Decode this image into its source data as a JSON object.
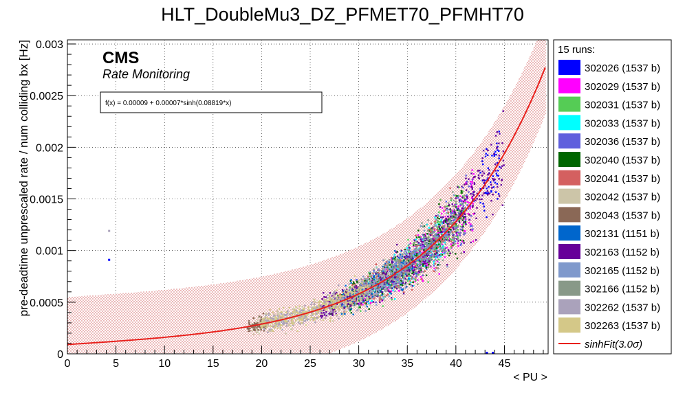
{
  "chart_data": {
    "type": "scatter",
    "title": "HLT_DoubleMu3_DZ_PFMET70_PFMHT70",
    "xlabel": "< PU >",
    "ylabel": "pre-deadtime unprescaled rate / num colliding bx [Hz]",
    "xlim": [
      0,
      49.5
    ],
    "ylim": [
      0,
      0.00304
    ],
    "xticks": [
      "0",
      "5",
      "10",
      "15",
      "20",
      "25",
      "30",
      "35",
      "40",
      "45"
    ],
    "yticks": [
      "0",
      "0.0005",
      "0.001",
      "0.0015",
      "0.002",
      "0.0025",
      "0.003"
    ],
    "grid": true,
    "legend_position": "right",
    "brand": "CMS",
    "subtitle": "Rate Monitoring",
    "fit_label": "f(x) = 0.00009 + 0.00007*sinh(0.08819*x)",
    "fit": {
      "a": 9e-05,
      "b": 7e-05,
      "c": 0.08819,
      "band_sigma": 3.0,
      "band_halfwidth": 0.00046,
      "x_range": [
        0,
        49.3
      ]
    },
    "legend": {
      "header": "15 runs:",
      "fit_entry": "sinhFit(3.0σ)",
      "fit_color": "#e8201c"
    },
    "series": [
      {
        "name": "302026 (1537 b)",
        "color": "#0000ff",
        "pu_range": [
          42.5,
          44.5
        ],
        "points": [
          [
            4.3,
            0.00091
          ],
          [
            43.2,
            1e-05
          ],
          [
            43.8,
            1e-05
          ]
        ]
      },
      {
        "name": "302029 (1537 b)",
        "color": "#ff00ff",
        "pu_range": [
          30,
          42
        ]
      },
      {
        "name": "302031 (1537 b)",
        "color": "#55cc55",
        "pu_range": [
          29,
          41
        ]
      },
      {
        "name": "302033 (1537 b)",
        "color": "#00ffff",
        "pu_range": [
          31,
          39
        ]
      },
      {
        "name": "302036 (1537 b)",
        "color": "#5f5fdd",
        "pu_range": [
          29,
          42
        ]
      },
      {
        "name": "302040 (1537 b)",
        "color": "#006600",
        "pu_range": [
          27,
          41
        ]
      },
      {
        "name": "302041 (1537 b)",
        "color": "#d46060",
        "pu_range": [
          28,
          40
        ]
      },
      {
        "name": "302042 (1537 b)",
        "color": "#ccc5a8",
        "pu_range": [
          19,
          35
        ]
      },
      {
        "name": "302043 (1537 b)",
        "color": "#8a6856",
        "pu_range": [
          18.5,
          20.5
        ]
      },
      {
        "name": "302131 (1151 b)",
        "color": "#0066cc",
        "pu_range": [
          28,
          36
        ]
      },
      {
        "name": "302163 (1152 b)",
        "color": "#660099",
        "pu_range": [
          26,
          45
        ]
      },
      {
        "name": "302165 (1152 b)",
        "color": "#7f99cc",
        "pu_range": [
          30,
          40
        ]
      },
      {
        "name": "302166 (1152 b)",
        "color": "#889988",
        "pu_range": [
          30,
          41
        ]
      },
      {
        "name": "302262 (1537 b)",
        "color": "#aaa2bb",
        "pu_range": [
          20,
          33
        ],
        "points": [
          [
            4.3,
            0.00119
          ]
        ]
      },
      {
        "name": "302263 (1537 b)",
        "color": "#d4c888",
        "pu_range": [
          20,
          31
        ]
      }
    ]
  }
}
